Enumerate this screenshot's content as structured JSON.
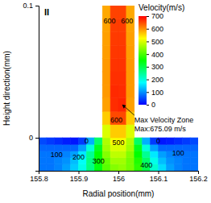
{
  "chart_data": {
    "type": "heatmap",
    "title": "II",
    "x_label": "Radial position(mm)",
    "y_label": "Height direction(mm)",
    "xlim": [
      155.8,
      156.2
    ],
    "xticks": [
      155.8,
      155.9,
      156,
      156.1,
      156.2
    ],
    "ylim": [
      -0.025,
      0.1
    ],
    "yticks": [
      0,
      0.1
    ],
    "x_edges": [
      155.8,
      155.82,
      155.84,
      155.86,
      155.88,
      155.9,
      155.92,
      155.94,
      155.96,
      155.98,
      156,
      156.02,
      156.04,
      156.06,
      156.08,
      156.1,
      156.12,
      156.14,
      156.16,
      156.18,
      156.2
    ],
    "y_edges": [
      -0.025,
      -0.02,
      -0.015,
      -0.01,
      -0.005,
      0,
      0.01,
      0.02,
      0.03,
      0.04,
      0.05,
      0.06,
      0.07,
      0.08,
      0.09,
      0.1
    ],
    "z": [
      [
        80,
        80,
        90,
        110,
        140,
        190,
        260,
        340,
        410,
        440,
        450,
        430,
        380,
        300,
        210,
        150,
        110,
        90,
        80,
        80
      ],
      [
        80,
        80,
        90,
        100,
        130,
        180,
        260,
        350,
        420,
        460,
        460,
        430,
        370,
        280,
        190,
        130,
        100,
        90,
        80,
        80
      ],
      [
        80,
        80,
        80,
        90,
        110,
        160,
        250,
        350,
        440,
        480,
        480,
        440,
        350,
        250,
        160,
        110,
        90,
        80,
        80,
        80
      ],
      [
        70,
        70,
        70,
        70,
        70,
        110,
        200,
        330,
        460,
        500,
        500,
        460,
        330,
        200,
        110,
        70,
        70,
        70,
        70,
        70
      ],
      [
        50,
        40,
        30,
        20,
        15,
        40,
        120,
        280,
        470,
        520,
        520,
        470,
        280,
        120,
        40,
        15,
        20,
        30,
        40,
        50
      ],
      [
        null,
        null,
        null,
        null,
        null,
        null,
        null,
        null,
        500,
        560,
        560,
        500,
        null,
        null,
        null,
        null,
        null,
        null,
        null,
        null
      ],
      [
        null,
        null,
        null,
        null,
        null,
        null,
        null,
        null,
        560,
        650,
        650,
        560,
        null,
        null,
        null,
        null,
        null,
        null,
        null,
        null
      ],
      [
        null,
        null,
        null,
        null,
        null,
        null,
        null,
        null,
        590,
        670,
        675.09,
        590,
        null,
        null,
        null,
        null,
        null,
        null,
        null,
        null
      ],
      [
        null,
        null,
        null,
        null,
        null,
        null,
        null,
        null,
        595,
        672,
        670,
        595,
        null,
        null,
        null,
        null,
        null,
        null,
        null,
        null
      ],
      [
        null,
        null,
        null,
        null,
        null,
        null,
        null,
        null,
        595,
        668,
        668,
        595,
        null,
        null,
        null,
        null,
        null,
        null,
        null,
        null
      ],
      [
        null,
        null,
        null,
        null,
        null,
        null,
        null,
        null,
        595,
        665,
        665,
        595,
        null,
        null,
        null,
        null,
        null,
        null,
        null,
        null
      ],
      [
        null,
        null,
        null,
        null,
        null,
        null,
        null,
        null,
        592,
        662,
        662,
        592,
        null,
        null,
        null,
        null,
        null,
        null,
        null,
        null
      ],
      [
        null,
        null,
        null,
        null,
        null,
        null,
        null,
        null,
        590,
        660,
        660,
        590,
        null,
        null,
        null,
        null,
        null,
        null,
        null,
        null
      ],
      [
        null,
        null,
        null,
        null,
        null,
        null,
        null,
        null,
        588,
        658,
        658,
        588,
        null,
        null,
        null,
        null,
        null,
        null,
        null,
        null
      ],
      [
        null,
        null,
        null,
        null,
        null,
        null,
        null,
        null,
        585,
        655,
        655,
        585,
        null,
        null,
        null,
        null,
        null,
        null,
        null,
        null
      ]
    ],
    "colorbar": {
      "title": "Velocity(m/s)",
      "range": [
        0,
        700
      ],
      "ticks": [
        0,
        100,
        200,
        300,
        400,
        500,
        600,
        700
      ]
    },
    "contour_labels": [
      {
        "text": "600",
        "x": 155.978,
        "y": 0.088
      },
      {
        "text": "600",
        "x": 156.022,
        "y": 0.088
      },
      {
        "text": "600",
        "x": 155.995,
        "y": 0.013
      },
      {
        "text": "500",
        "x": 156.0,
        "y": -0.004
      },
      {
        "text": "0",
        "x": 155.92,
        "y": -0.003
      },
      {
        "text": "0",
        "x": 156.1,
        "y": -0.003
      },
      {
        "text": "100",
        "x": 155.845,
        "y": -0.013
      },
      {
        "text": "200",
        "x": 155.9,
        "y": -0.015
      },
      {
        "text": "300",
        "x": 155.95,
        "y": -0.018
      },
      {
        "text": "400",
        "x": 156.07,
        "y": -0.021
      },
      {
        "text": "100",
        "x": 156.15,
        "y": -0.012
      }
    ],
    "callout": {
      "text": [
        "Max Velocity Zone",
        "Max:675.09 m/s"
      ],
      "x": 156.04,
      "y": 0.0128
    }
  }
}
